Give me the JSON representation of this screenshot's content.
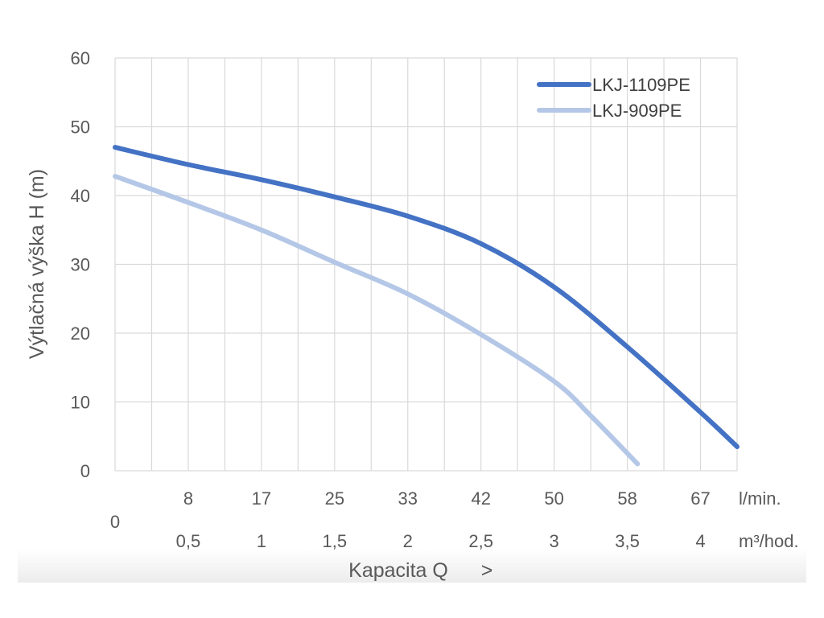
{
  "chart_data": {
    "type": "line",
    "title": "",
    "ylabel": "Výtlačná výška H (m)",
    "xlabel": "Kapacita Q",
    "xlabel_arrow": ">",
    "ylim": [
      0,
      60
    ],
    "y_ticks": [
      "0",
      "10",
      "20",
      "30",
      "40",
      "50",
      "60"
    ],
    "x_origin_label": "0",
    "x_ticks_lmin": [
      "8",
      "17",
      "25",
      "33",
      "42",
      "50",
      "58",
      "67"
    ],
    "x_unit_lmin": "l/min.",
    "x_ticks_m3h": [
      "0,5",
      "1",
      "1,5",
      "2",
      "2,5",
      "3",
      "3,5",
      "4"
    ],
    "x_unit_m3h": "m³/hod.",
    "xlim_m3h": [
      0,
      4.25
    ],
    "grid": true,
    "legend_position": "top-right",
    "series": [
      {
        "name": "LKJ-1109PE",
        "color": "#4472c4",
        "x_m3h": [
          0,
          0.5,
          1,
          1.5,
          2,
          2.5,
          3,
          3.5,
          4,
          4.25
        ],
        "y": [
          47,
          44.5,
          42.3,
          39.8,
          37,
          33,
          26.7,
          18,
          8.5,
          3.5
        ]
      },
      {
        "name": "LKJ-909PE",
        "color": "#b4c7e7",
        "x_m3h": [
          0,
          0.5,
          1,
          1.5,
          2,
          2.5,
          3,
          3.25,
          3.57
        ],
        "y": [
          42.8,
          39,
          35,
          30.3,
          25.7,
          19.8,
          13,
          8,
          1
        ]
      }
    ]
  }
}
